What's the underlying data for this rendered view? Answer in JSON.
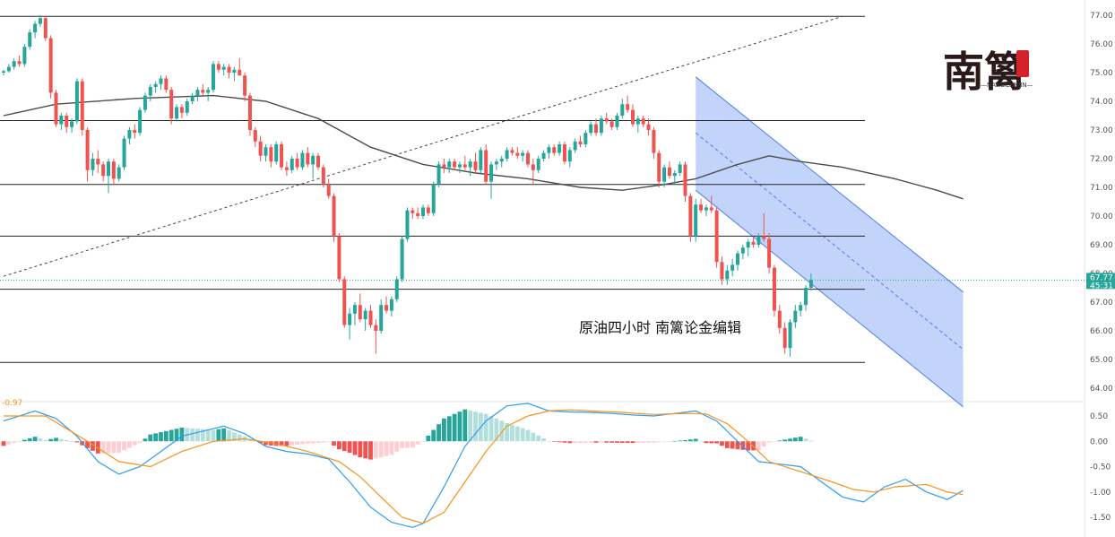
{
  "chart_data": {
    "type": "candlestick",
    "title": "原油四小时  南篱论金编辑",
    "watermark": {
      "glyph": "南篱",
      "sub": "—NANLILUNJIN—"
    },
    "colors": {
      "up": "#26a69a",
      "down": "#ef5350",
      "ma": "#4b4b4b",
      "channel_fill": "#aec6f7",
      "channel_line": "#4f7df0",
      "macd_line": "#2a9df4",
      "signal_line": "#f7931a",
      "hist_up_strong": "#26a69a",
      "hist_up_weak": "#b2dfdb",
      "hist_down_strong": "#ef5350",
      "hist_down_weak": "#ffcdd2"
    },
    "price_axis": {
      "ticks": [
        "77.00",
        "76.00",
        "75.00",
        "74.00",
        "73.00",
        "72.00",
        "71.00",
        "70.00",
        "69.00",
        "68.00",
        "67.00",
        "66.00",
        "65.00",
        "64.00"
      ],
      "min": 64,
      "max": 77
    },
    "macd_axis": {
      "ticks": [
        "0.50",
        "0.00",
        "-0.50",
        "-1.00",
        "-1.50"
      ],
      "min": -1.5,
      "max": 0.5
    },
    "last_price": "67.77",
    "countdown": "45:31",
    "macd_label": "-0.97",
    "horizontal_levels": [
      76.96,
      73.33,
      71.1,
      69.3,
      67.45,
      64.9
    ],
    "trendline": {
      "from": {
        "bar": 0,
        "price": 67.9
      },
      "to": {
        "bar": 160,
        "price": 76.96
      }
    },
    "channel": {
      "start_bar": 132,
      "end_bar": 183,
      "upper": [
        74.85,
        67.35
      ],
      "mid": [
        72.9,
        65.35
      ],
      "lower": [
        70.9,
        63.35
      ]
    },
    "candles": [
      [
        75.0,
        75.1,
        74.9,
        75.05
      ],
      [
        75.05,
        75.3,
        75.0,
        75.2
      ],
      [
        75.2,
        75.5,
        75.1,
        75.4
      ],
      [
        75.4,
        75.6,
        75.2,
        75.3
      ],
      [
        75.3,
        76.0,
        75.2,
        75.9
      ],
      [
        75.9,
        76.5,
        75.8,
        76.4
      ],
      [
        76.4,
        76.8,
        76.2,
        76.7
      ],
      [
        76.7,
        77.0,
        76.6,
        76.9
      ],
      [
        76.9,
        76.95,
        76.1,
        76.2
      ],
      [
        76.2,
        76.3,
        74.1,
        74.3
      ],
      [
        74.3,
        74.4,
        73.1,
        73.2
      ],
      [
        73.2,
        73.6,
        73.0,
        73.5
      ],
      [
        73.5,
        73.6,
        72.9,
        73.1
      ],
      [
        73.1,
        73.4,
        72.9,
        73.3
      ],
      [
        73.3,
        74.8,
        73.2,
        74.7
      ],
      [
        74.7,
        74.8,
        72.8,
        73.0
      ],
      [
        73.0,
        73.1,
        71.2,
        71.6
      ],
      [
        71.6,
        72.2,
        71.4,
        72.0
      ],
      [
        72.0,
        72.3,
        71.5,
        71.8
      ],
      [
        71.8,
        71.9,
        71.2,
        71.4
      ],
      [
        71.4,
        72.0,
        70.8,
        71.9
      ],
      [
        71.9,
        72.0,
        71.1,
        71.3
      ],
      [
        71.3,
        71.8,
        71.2,
        71.7
      ],
      [
        71.7,
        72.8,
        71.6,
        72.7
      ],
      [
        72.7,
        73.1,
        72.5,
        73.0
      ],
      [
        73.0,
        73.2,
        72.7,
        72.9
      ],
      [
        72.9,
        73.8,
        72.8,
        73.7
      ],
      [
        73.7,
        74.3,
        73.6,
        74.2
      ],
      [
        74.2,
        74.6,
        74.0,
        74.5
      ],
      [
        74.5,
        74.7,
        74.3,
        74.6
      ],
      [
        74.6,
        74.9,
        74.4,
        74.8
      ],
      [
        74.8,
        74.9,
        74.3,
        74.4
      ],
      [
        74.4,
        74.5,
        73.2,
        73.4
      ],
      [
        73.4,
        73.9,
        73.3,
        73.8
      ],
      [
        73.8,
        73.9,
        73.4,
        73.6
      ],
      [
        73.6,
        74.1,
        73.5,
        74.0
      ],
      [
        74.0,
        74.3,
        73.9,
        74.2
      ],
      [
        74.2,
        74.5,
        74.0,
        74.4
      ],
      [
        74.4,
        74.6,
        74.2,
        74.3
      ],
      [
        74.3,
        74.5,
        74.0,
        74.4
      ],
      [
        74.4,
        75.4,
        74.3,
        75.3
      ],
      [
        75.3,
        75.4,
        75.0,
        75.1
      ],
      [
        75.1,
        75.3,
        74.9,
        75.2
      ],
      [
        75.2,
        75.3,
        74.8,
        75.0
      ],
      [
        75.0,
        75.2,
        74.7,
        75.1
      ],
      [
        75.1,
        75.5,
        74.9,
        74.9
      ],
      [
        74.9,
        75.0,
        74.0,
        74.2
      ],
      [
        74.2,
        74.3,
        72.8,
        73.0
      ],
      [
        73.0,
        73.1,
        72.4,
        72.6
      ],
      [
        72.6,
        72.8,
        71.9,
        72.1
      ],
      [
        72.1,
        72.5,
        71.9,
        72.4
      ],
      [
        72.4,
        72.5,
        71.7,
        71.9
      ],
      [
        71.9,
        72.6,
        71.8,
        72.5
      ],
      [
        72.5,
        72.6,
        71.6,
        71.7
      ],
      [
        71.7,
        71.9,
        71.4,
        71.6
      ],
      [
        71.6,
        72.1,
        71.5,
        72.0
      ],
      [
        72.0,
        72.2,
        71.6,
        71.7
      ],
      [
        71.7,
        72.3,
        71.6,
        72.2
      ],
      [
        72.2,
        72.4,
        71.7,
        71.8
      ],
      [
        71.8,
        72.2,
        71.3,
        72.1
      ],
      [
        72.1,
        72.2,
        71.6,
        71.7
      ],
      [
        71.7,
        71.8,
        71.0,
        71.1
      ],
      [
        71.1,
        71.3,
        70.6,
        70.7
      ],
      [
        70.7,
        70.8,
        69.1,
        69.3
      ],
      [
        69.3,
        69.4,
        67.7,
        67.8
      ],
      [
        67.8,
        67.9,
        66.1,
        66.2
      ],
      [
        66.2,
        66.8,
        65.7,
        66.6
      ],
      [
        66.6,
        67.0,
        66.2,
        66.9
      ],
      [
        66.9,
        67.3,
        66.3,
        66.4
      ],
      [
        66.4,
        66.8,
        66.0,
        66.7
      ],
      [
        66.7,
        66.9,
        66.1,
        66.2
      ],
      [
        66.2,
        66.4,
        65.2,
        66.0
      ],
      [
        66.0,
        67.1,
        65.9,
        66.9
      ],
      [
        66.9,
        67.2,
        66.6,
        66.7
      ],
      [
        66.7,
        67.2,
        66.5,
        67.1
      ],
      [
        67.1,
        67.9,
        67.0,
        67.8
      ],
      [
        67.8,
        69.3,
        67.7,
        69.2
      ],
      [
        69.2,
        70.3,
        69.1,
        70.2
      ],
      [
        70.2,
        70.3,
        69.9,
        70.1
      ],
      [
        70.1,
        70.3,
        69.9,
        70.0
      ],
      [
        70.0,
        70.4,
        69.9,
        70.3
      ],
      [
        70.3,
        70.4,
        70.0,
        70.1
      ],
      [
        70.1,
        71.2,
        70.0,
        71.1
      ],
      [
        71.1,
        71.9,
        71.0,
        71.8
      ],
      [
        71.8,
        72.0,
        71.5,
        71.7
      ],
      [
        71.7,
        72.0,
        71.5,
        71.9
      ],
      [
        71.9,
        72.0,
        71.6,
        71.7
      ],
      [
        71.7,
        71.9,
        71.5,
        71.8
      ],
      [
        71.8,
        72.1,
        71.6,
        71.7
      ],
      [
        71.7,
        72.0,
        71.4,
        71.9
      ],
      [
        71.9,
        72.2,
        71.5,
        71.6
      ],
      [
        71.6,
        72.4,
        71.5,
        72.3
      ],
      [
        72.3,
        72.5,
        71.1,
        71.2
      ],
      [
        71.2,
        71.9,
        70.6,
        71.8
      ],
      [
        71.8,
        72.0,
        71.6,
        71.9
      ],
      [
        71.9,
        72.1,
        71.7,
        72.0
      ],
      [
        72.0,
        72.4,
        71.9,
        72.3
      ],
      [
        72.3,
        72.4,
        72.1,
        72.2
      ],
      [
        72.2,
        72.4,
        72.0,
        72.1
      ],
      [
        72.1,
        72.3,
        71.9,
        72.2
      ],
      [
        72.2,
        72.3,
        71.7,
        71.8
      ],
      [
        71.8,
        72.0,
        71.1,
        71.6
      ],
      [
        71.6,
        72.1,
        71.5,
        72.0
      ],
      [
        72.0,
        72.3,
        71.9,
        72.2
      ],
      [
        72.2,
        72.5,
        72.0,
        72.4
      ],
      [
        72.4,
        72.5,
        72.1,
        72.2
      ],
      [
        72.2,
        72.6,
        72.1,
        72.5
      ],
      [
        72.5,
        72.6,
        71.8,
        71.9
      ],
      [
        71.9,
        72.4,
        71.7,
        72.3
      ],
      [
        72.3,
        72.7,
        72.2,
        72.6
      ],
      [
        72.6,
        72.8,
        72.4,
        72.5
      ],
      [
        72.5,
        73.0,
        72.4,
        72.9
      ],
      [
        72.9,
        73.3,
        72.8,
        73.2
      ],
      [
        73.2,
        73.4,
        72.8,
        72.9
      ],
      [
        72.9,
        73.5,
        72.8,
        73.4
      ],
      [
        73.4,
        73.6,
        73.2,
        73.3
      ],
      [
        73.3,
        73.4,
        73.0,
        73.1
      ],
      [
        73.1,
        73.6,
        73.0,
        73.5
      ],
      [
        73.5,
        74.1,
        73.4,
        73.9
      ],
      [
        73.9,
        74.2,
        73.6,
        73.7
      ],
      [
        73.7,
        73.9,
        73.1,
        73.2
      ],
      [
        73.2,
        73.5,
        72.9,
        73.4
      ],
      [
        73.4,
        73.5,
        73.1,
        73.2
      ],
      [
        73.2,
        73.4,
        72.8,
        73.0
      ],
      [
        73.0,
        73.1,
        72.0,
        72.2
      ],
      [
        72.2,
        72.3,
        71.0,
        71.2
      ],
      [
        71.2,
        71.8,
        71.0,
        71.7
      ],
      [
        71.7,
        71.9,
        71.3,
        71.4
      ],
      [
        71.4,
        71.6,
        71.1,
        71.5
      ],
      [
        71.5,
        71.9,
        71.4,
        71.8
      ],
      [
        71.8,
        71.9,
        70.5,
        70.7
      ],
      [
        70.7,
        70.8,
        69.1,
        69.3
      ],
      [
        69.3,
        70.6,
        69.1,
        70.4
      ],
      [
        70.4,
        70.6,
        70.1,
        70.2
      ],
      [
        70.2,
        70.4,
        70.0,
        70.3
      ],
      [
        70.3,
        70.7,
        70.1,
        70.2
      ],
      [
        70.2,
        70.3,
        68.2,
        68.4
      ],
      [
        68.4,
        68.6,
        67.6,
        67.8
      ],
      [
        67.8,
        68.3,
        67.6,
        68.1
      ],
      [
        68.1,
        68.5,
        67.9,
        68.3
      ],
      [
        68.3,
        68.8,
        68.1,
        68.7
      ],
      [
        68.7,
        69.0,
        68.5,
        68.9
      ],
      [
        68.9,
        69.2,
        68.6,
        69.1
      ],
      [
        69.1,
        69.3,
        68.9,
        69.0
      ],
      [
        69.0,
        69.4,
        68.9,
        69.3
      ],
      [
        69.3,
        70.1,
        69.1,
        69.2
      ],
      [
        69.2,
        69.4,
        68.0,
        68.2
      ],
      [
        68.2,
        68.3,
        66.5,
        66.7
      ],
      [
        66.7,
        66.9,
        65.9,
        66.1
      ],
      [
        66.1,
        66.3,
        65.2,
        65.4
      ],
      [
        65.4,
        66.4,
        65.1,
        66.3
      ],
      [
        66.3,
        66.9,
        66.1,
        66.7
      ],
      [
        66.7,
        67.0,
        66.5,
        66.9
      ],
      [
        66.9,
        67.6,
        66.7,
        67.5
      ],
      [
        67.5,
        68.0,
        67.4,
        67.77
      ]
    ],
    "ma_curve": [
      [
        0,
        73.5
      ],
      [
        10,
        73.9
      ],
      [
        25,
        74.1
      ],
      [
        40,
        74.2
      ],
      [
        50,
        74.0
      ],
      [
        60,
        73.4
      ],
      [
        70,
        72.4
      ],
      [
        80,
        71.8
      ],
      [
        90,
        71.5
      ],
      [
        100,
        71.3
      ],
      [
        110,
        71.0
      ],
      [
        118,
        70.9
      ],
      [
        126,
        71.1
      ],
      [
        132,
        71.3
      ],
      [
        140,
        71.8
      ],
      [
        146,
        72.1
      ],
      [
        152,
        71.9
      ],
      [
        160,
        71.7
      ],
      [
        170,
        71.3
      ],
      [
        178,
        70.9
      ],
      [
        183,
        70.6
      ]
    ],
    "macd_line": [
      [
        0,
        0.4
      ],
      [
        6,
        0.6
      ],
      [
        10,
        0.45
      ],
      [
        14,
        0.1
      ],
      [
        18,
        -0.4
      ],
      [
        22,
        -0.65
      ],
      [
        26,
        -0.5
      ],
      [
        30,
        -0.2
      ],
      [
        34,
        0.1
      ],
      [
        38,
        0.2
      ],
      [
        42,
        0.3
      ],
      [
        46,
        0.15
      ],
      [
        50,
        -0.1
      ],
      [
        54,
        -0.2
      ],
      [
        58,
        -0.25
      ],
      [
        62,
        -0.35
      ],
      [
        66,
        -0.8
      ],
      [
        70,
        -1.3
      ],
      [
        74,
        -1.6
      ],
      [
        78,
        -1.7
      ],
      [
        80,
        -1.62
      ],
      [
        84,
        -0.9
      ],
      [
        88,
        -0.1
      ],
      [
        92,
        0.4
      ],
      [
        96,
        0.7
      ],
      [
        100,
        0.75
      ],
      [
        104,
        0.6
      ],
      [
        108,
        0.58
      ],
      [
        112,
        0.57
      ],
      [
        116,
        0.55
      ],
      [
        120,
        0.52
      ],
      [
        124,
        0.5
      ],
      [
        128,
        0.55
      ],
      [
        132,
        0.6
      ],
      [
        136,
        0.4
      ],
      [
        140,
        0.0
      ],
      [
        144,
        -0.4
      ],
      [
        148,
        -0.45
      ],
      [
        152,
        -0.5
      ],
      [
        156,
        -0.8
      ],
      [
        160,
        -1.1
      ],
      [
        164,
        -1.2
      ],
      [
        168,
        -0.9
      ],
      [
        172,
        -0.75
      ],
      [
        176,
        -1.0
      ],
      [
        180,
        -1.15
      ],
      [
        183,
        -0.97
      ]
    ],
    "signal_line": [
      [
        0,
        0.5
      ],
      [
        8,
        0.5
      ],
      [
        12,
        0.25
      ],
      [
        16,
        0.0
      ],
      [
        22,
        -0.4
      ],
      [
        28,
        -0.5
      ],
      [
        34,
        -0.2
      ],
      [
        40,
        0.0
      ],
      [
        46,
        0.05
      ],
      [
        52,
        -0.05
      ],
      [
        58,
        -0.2
      ],
      [
        64,
        -0.4
      ],
      [
        68,
        -0.7
      ],
      [
        72,
        -1.1
      ],
      [
        76,
        -1.5
      ],
      [
        80,
        -1.62
      ],
      [
        84,
        -1.4
      ],
      [
        88,
        -0.8
      ],
      [
        92,
        -0.2
      ],
      [
        96,
        0.3
      ],
      [
        100,
        0.5
      ],
      [
        104,
        0.6
      ],
      [
        108,
        0.62
      ],
      [
        112,
        0.6
      ],
      [
        118,
        0.57
      ],
      [
        124,
        0.53
      ],
      [
        130,
        0.55
      ],
      [
        134,
        0.54
      ],
      [
        138,
        0.35
      ],
      [
        142,
        0.0
      ],
      [
        146,
        -0.4
      ],
      [
        152,
        -0.6
      ],
      [
        158,
        -0.8
      ],
      [
        162,
        -0.95
      ],
      [
        166,
        -1.0
      ],
      [
        170,
        -0.9
      ],
      [
        176,
        -0.85
      ],
      [
        180,
        -1.0
      ],
      [
        183,
        -1.05
      ]
    ]
  }
}
